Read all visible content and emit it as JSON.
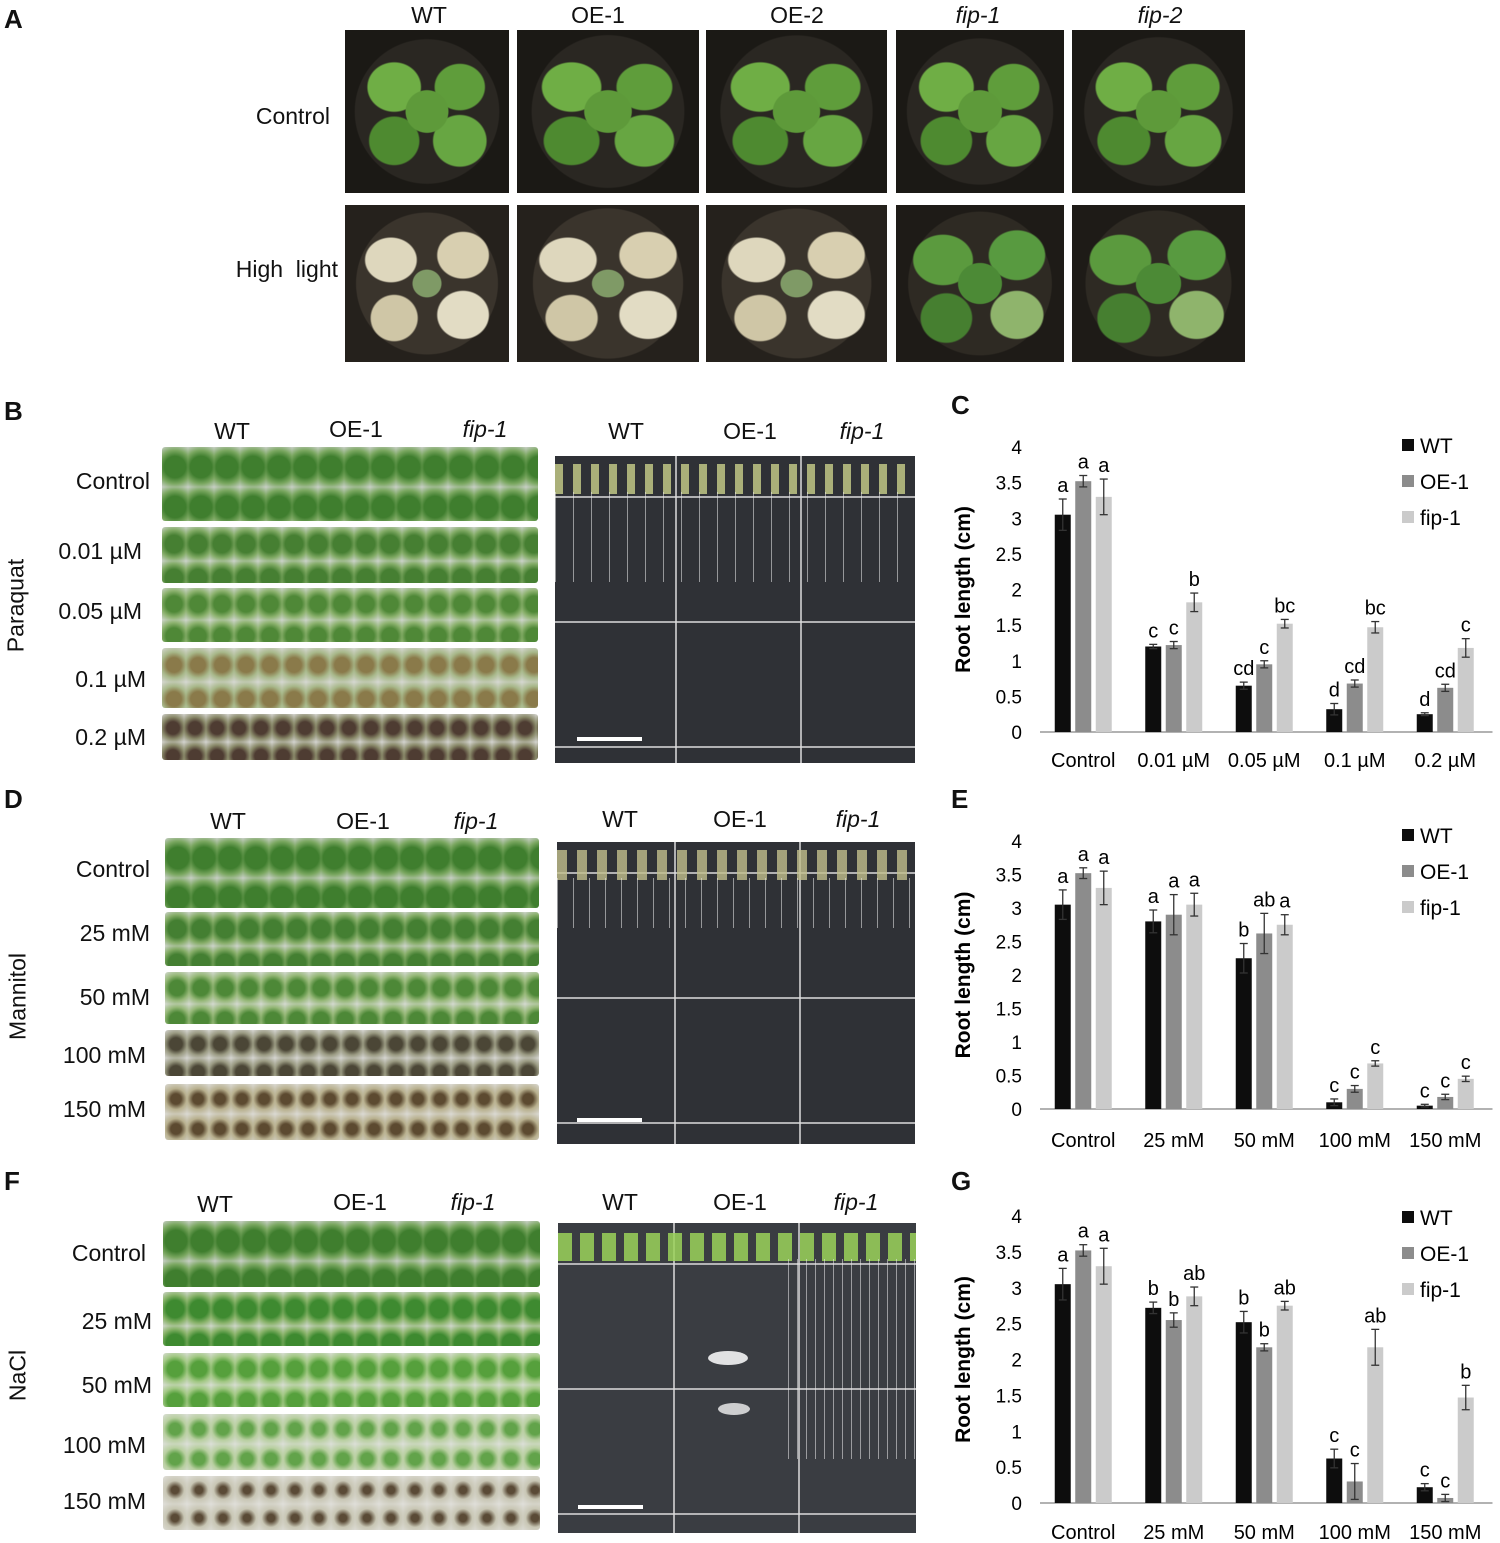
{
  "panels": {
    "A": "A",
    "B": "B",
    "C": "C",
    "D": "D",
    "E": "E",
    "F": "F",
    "G": "G"
  },
  "panel_a": {
    "columns": [
      "WT",
      "OE-1",
      "OE-2",
      "fip-1",
      "fip-2"
    ],
    "rows": [
      "Control",
      "High  light"
    ]
  },
  "panel_b": {
    "treatment": "Paraquat",
    "columns": [
      "WT",
      "OE-1",
      "fip-1"
    ],
    "rows": [
      "Control",
      "0.01 µM",
      "0.05 µM",
      "0.1 µM",
      "0.2 µM"
    ],
    "plate_columns": [
      "WT",
      "OE-1",
      "fip-1"
    ]
  },
  "panel_d": {
    "treatment": "Mannitol",
    "columns": [
      "WT",
      "OE-1",
      "fip-1"
    ],
    "rows": [
      "Control",
      "25 mM",
      "50 mM",
      "100 mM",
      "150 mM"
    ],
    "plate_columns": [
      "WT",
      "OE-1",
      "fip-1"
    ]
  },
  "panel_f": {
    "treatment": "NaCl",
    "columns": [
      "WT",
      "OE-1",
      "fip-1"
    ],
    "rows": [
      "Control",
      "25 mM",
      "50 mM",
      "100 mM",
      "150 mM"
    ],
    "plate_columns": [
      "WT",
      "OE-1",
      "fip-1"
    ]
  },
  "colors": {
    "WT": "#0d0d0d",
    "OE-1": "#8c8c8c",
    "fip-1": "#cbcbcb"
  },
  "chart_data": [
    {
      "panel": "C",
      "type": "bar",
      "ylabel": "Root length (cm)",
      "ylim": [
        0,
        4
      ],
      "yticks": [
        "0",
        "0.5",
        "1",
        "1.5",
        "2",
        "2.5",
        "3",
        "3.5",
        "4"
      ],
      "categories": [
        "Control",
        "0.01 µM",
        "0.05 µM",
        "0.1 µM",
        "0.2 µM"
      ],
      "legend": "top-right",
      "series": [
        {
          "name": "WT",
          "values": [
            3.05,
            1.2,
            0.65,
            0.32,
            0.25
          ],
          "errors": [
            0.22,
            0.03,
            0.05,
            0.08,
            0.02
          ],
          "letters": [
            "a",
            "c",
            "cd",
            "d",
            "d"
          ]
        },
        {
          "name": "OE-1",
          "values": [
            3.52,
            1.22,
            0.95,
            0.68,
            0.62
          ],
          "errors": [
            0.08,
            0.05,
            0.05,
            0.05,
            0.05
          ],
          "letters": [
            "a",
            "c",
            "c",
            "cd",
            "cd"
          ]
        },
        {
          "name": "fip-1",
          "values": [
            3.3,
            1.82,
            1.52,
            1.47,
            1.18
          ],
          "errors": [
            0.25,
            0.13,
            0.06,
            0.08,
            0.13
          ],
          "letters": [
            "a",
            "b",
            "bc",
            "bc",
            "c"
          ]
        }
      ]
    },
    {
      "panel": "E",
      "type": "bar",
      "ylabel": "Root length (cm)",
      "ylim": [
        0,
        4
      ],
      "yticks": [
        "0",
        "0.5",
        "1",
        "1.5",
        "2",
        "2.5",
        "3",
        "3.5",
        "4"
      ],
      "categories": [
        "Control",
        "25 mM",
        "50 mM",
        "100 mM",
        "150 mM"
      ],
      "legend": "top-right",
      "series": [
        {
          "name": "WT",
          "values": [
            3.05,
            2.8,
            2.25,
            0.1,
            0.05
          ],
          "errors": [
            0.22,
            0.17,
            0.22,
            0.05,
            0.02
          ],
          "letters": [
            "a",
            "a",
            "b",
            "c",
            "c"
          ]
        },
        {
          "name": "OE-1",
          "values": [
            3.52,
            2.9,
            2.62,
            0.3,
            0.18
          ],
          "errors": [
            0.08,
            0.3,
            0.3,
            0.05,
            0.04
          ],
          "letters": [
            "a",
            "a",
            "ab",
            "c",
            "c"
          ]
        },
        {
          "name": "fip-1",
          "values": [
            3.3,
            3.05,
            2.75,
            0.68,
            0.45
          ],
          "errors": [
            0.25,
            0.17,
            0.15,
            0.04,
            0.04
          ],
          "letters": [
            "a",
            "a",
            "a",
            "c",
            "c"
          ]
        }
      ]
    },
    {
      "panel": "G",
      "type": "bar",
      "ylabel": "Root length (cm)",
      "ylim": [
        0,
        4
      ],
      "yticks": [
        "0",
        "0.5",
        "1",
        "1.5",
        "2",
        "2.5",
        "3",
        "3.5",
        "4"
      ],
      "categories": [
        "Control",
        "25 mM",
        "50 mM",
        "100 mM",
        "150 mM"
      ],
      "legend": "top-right",
      "series": [
        {
          "name": "WT",
          "values": [
            3.05,
            2.72,
            2.52,
            0.62,
            0.22
          ],
          "errors": [
            0.22,
            0.08,
            0.15,
            0.13,
            0.05
          ],
          "letters": [
            "a",
            "b",
            "b",
            "c",
            "c"
          ]
        },
        {
          "name": "OE-1",
          "values": [
            3.52,
            2.55,
            2.17,
            0.3,
            0.07
          ],
          "errors": [
            0.08,
            0.1,
            0.05,
            0.25,
            0.05
          ],
          "letters": [
            "a",
            "b",
            "b",
            "c",
            "c"
          ]
        },
        {
          "name": "fip-1",
          "values": [
            3.3,
            2.88,
            2.75,
            2.17,
            1.47
          ],
          "errors": [
            0.25,
            0.13,
            0.06,
            0.25,
            0.17
          ],
          "letters": [
            "a",
            "ab",
            "ab",
            "ab",
            "b"
          ]
        }
      ]
    }
  ]
}
